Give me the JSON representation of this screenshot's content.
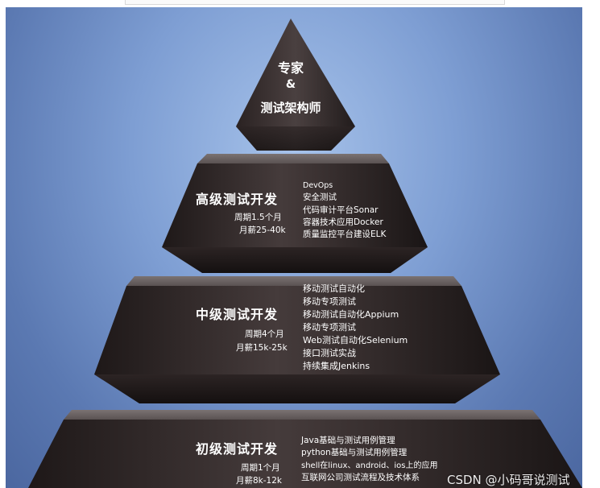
{
  "levels": {
    "expert": {
      "title_line1": "专家",
      "title_amp": "&",
      "title_line2": "测试架构师"
    },
    "senior": {
      "title": "高级测试开发",
      "period": "周期1.5个月",
      "salary": "月薪25-40k",
      "skills": [
        "DevOps",
        "安全测试",
        "代码审计平台Sonar",
        "容器技术应用Docker",
        "质量监控平台建设ELK"
      ]
    },
    "intermediate": {
      "title": "中级测试开发",
      "period": "周期4个月",
      "salary": "月薪15k-25k",
      "skills": [
        "移动测试自动化",
        "移动专项测试",
        "移动测试自动化Appium",
        "移动专项测试",
        "Web测试自动化Selenium",
        "接口测试实战",
        "持续集成Jenkins"
      ]
    },
    "junior": {
      "title": "初级测试开发",
      "period": "周期1个月",
      "salary": "月薪8k-12k",
      "skills": [
        "Java基础与测试用例管理",
        "python基础与测试用例管理",
        "shell在linux、android、ios上的应用",
        "互联网公司测试流程及技术体系"
      ]
    }
  },
  "watermark": "CSDN @小码哥说测试",
  "colors": {
    "background": "#7e9ed3",
    "pyramid_face": "#3a3030",
    "pyramid_top": "#6a6262",
    "text": "#ffffff"
  }
}
